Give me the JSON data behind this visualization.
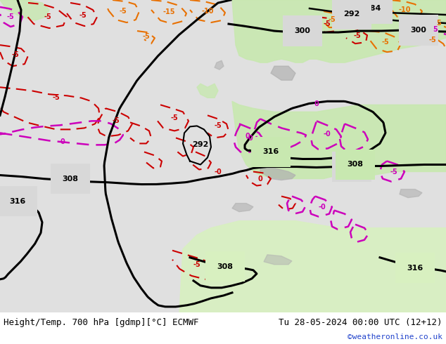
{
  "title_left": "Height/Temp. 700 hPa [gdmp][°C] ECMWF",
  "title_right": "Tu 28-05-2024 00:00 UTC (12+12)",
  "watermark": "©weatheronline.co.uk",
  "fig_width": 6.34,
  "fig_height": 4.9,
  "dpi": 100,
  "map_bg": "#e8e8e8",
  "land_green": "#c8e8b0",
  "land_green2": "#d8f0c0",
  "gray_land": "#b8b8b8",
  "sea_gray": "#d8d8d8"
}
